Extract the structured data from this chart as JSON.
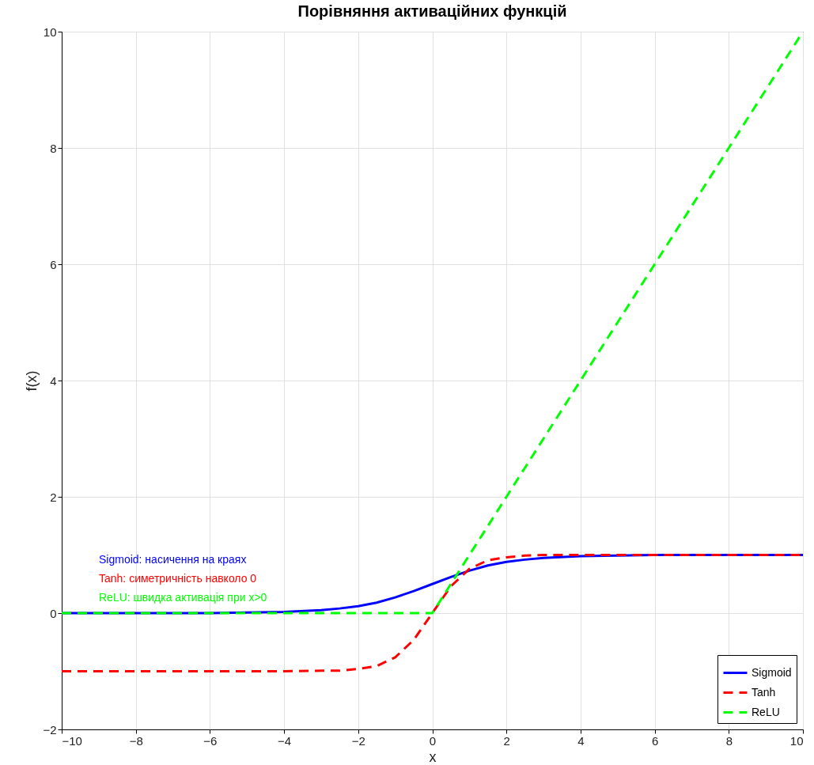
{
  "chart_data": {
    "type": "line",
    "title": "Порівняння активаційних функцій",
    "xlabel": "x",
    "ylabel": "f(x)",
    "x": [
      -10,
      -8,
      -6,
      -5,
      -4,
      -3,
      -2.5,
      -2,
      -1.5,
      -1,
      -0.5,
      0,
      0.5,
      1,
      1.5,
      2,
      2.5,
      3,
      4,
      5,
      6,
      8,
      10
    ],
    "series": [
      {
        "name": "Sigmoid",
        "color": "#0000ff",
        "line_style": "solid",
        "values": [
          0,
          0,
          0,
          0.01,
          0.02,
          0.05,
          0.08,
          0.12,
          0.18,
          0.27,
          0.38,
          0.5,
          0.62,
          0.73,
          0.82,
          0.88,
          0.92,
          0.95,
          0.98,
          0.99,
          1,
          1,
          1
        ]
      },
      {
        "name": "Tanh",
        "color": "#ff0000",
        "line_style": "dashed",
        "values": [
          -1,
          -1,
          -1,
          -1,
          -1,
          -0.99,
          -0.99,
          -0.96,
          -0.91,
          -0.76,
          -0.46,
          0,
          0.46,
          0.76,
          0.91,
          0.96,
          0.99,
          1,
          1,
          1,
          1,
          1,
          1
        ]
      },
      {
        "name": "ReLU",
        "color": "#00ff00",
        "line_style": "dashed",
        "values": [
          0,
          0,
          0,
          0,
          0,
          0,
          0,
          0,
          0,
          0,
          0,
          0,
          0.5,
          1,
          1.5,
          2,
          2.5,
          3,
          4,
          5,
          6,
          8,
          10
        ]
      }
    ],
    "annotations": [
      "Sigmoid: насичення на краях",
      "Tanh: симетричність навколо 0",
      "ReLU: швидка активація при x>0"
    ],
    "xlim": [
      -10,
      10
    ],
    "xticks": [
      -10,
      -8,
      -6,
      -4,
      -2,
      0,
      2,
      4,
      6,
      8,
      10
    ],
    "ylim": [
      -2,
      10
    ],
    "yticks": [
      -2,
      0,
      2,
      4,
      6,
      8,
      10
    ],
    "grid": true,
    "legend": "bottom right",
    "marker": "none"
  }
}
